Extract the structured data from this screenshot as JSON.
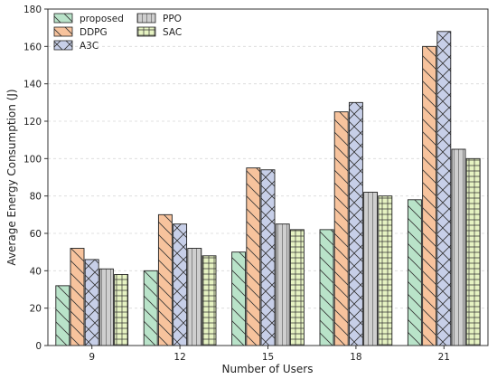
{
  "chart_data": {
    "type": "bar",
    "xlabel": "Number of Users",
    "ylabel": "Average Energy Consumption (J)",
    "categories": [
      "9",
      "12",
      "15",
      "18",
      "21"
    ],
    "ylim": [
      0,
      180
    ],
    "yticks": [
      0,
      20,
      40,
      60,
      80,
      100,
      120,
      140,
      160,
      180
    ],
    "grid": true,
    "legend_position": "top-left",
    "series": [
      {
        "name": "proposed",
        "values": [
          32,
          40,
          50,
          62,
          78
        ],
        "color": "#b9e3c9",
        "hatch": "diag-back"
      },
      {
        "name": "DDPG",
        "values": [
          52,
          70,
          95,
          125,
          160
        ],
        "color": "#f7c39d",
        "hatch": "diag-back"
      },
      {
        "name": "A3C",
        "values": [
          46,
          65,
          94,
          130,
          168
        ],
        "color": "#c7cfe8",
        "hatch": "cross"
      },
      {
        "name": "PPO",
        "values": [
          41,
          52,
          65,
          82,
          105
        ],
        "color": "#cfcfcf",
        "hatch": "vert"
      },
      {
        "name": "SAC",
        "values": [
          38,
          48,
          62,
          80,
          100
        ],
        "color": "#e6f3c2",
        "hatch": "grid"
      }
    ]
  }
}
